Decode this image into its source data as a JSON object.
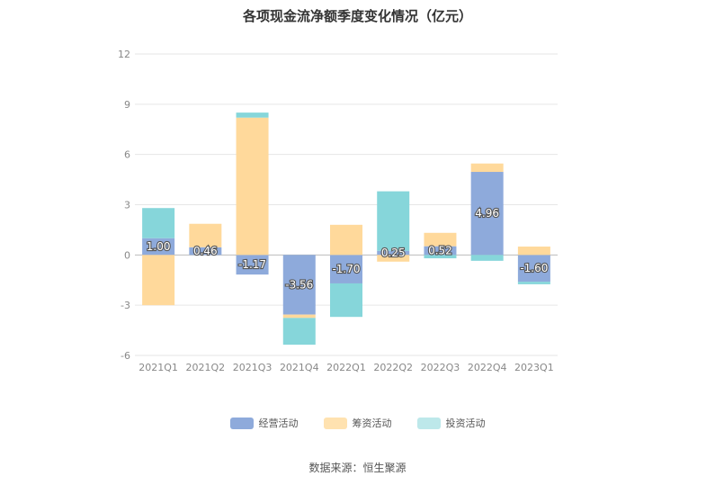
{
  "chart_data": {
    "type": "bar",
    "stacked": true,
    "title": "各项现金流净额季度变化情况（亿元）",
    "xlabel": "",
    "ylabel": "",
    "categories": [
      "2021Q1",
      "2021Q2",
      "2021Q3",
      "2021Q4",
      "2022Q1",
      "2022Q2",
      "2022Q3",
      "2022Q4",
      "2023Q1"
    ],
    "ylim": [
      -6,
      12
    ],
    "yticks": [
      -6,
      -3,
      0,
      3,
      6,
      9,
      12
    ],
    "grid": true,
    "legend_position": "bottom",
    "series": [
      {
        "name": "经营活动",
        "color": "#8eaadb",
        "values": [
          1.0,
          0.46,
          -1.17,
          -3.56,
          -1.7,
          0.25,
          0.52,
          4.96,
          -1.6
        ],
        "labels": [
          "1.00",
          "0.46",
          "-1.17",
          "-3.56",
          "-1.70",
          "0.25",
          "0.52",
          "4.96",
          "-1.60"
        ]
      },
      {
        "name": "筹资活动",
        "color": "#ffd99b",
        "values": [
          -3.0,
          1.4,
          8.2,
          -0.2,
          1.8,
          -0.4,
          0.8,
          0.5,
          0.5
        ]
      },
      {
        "name": "投资活动",
        "color": "#86d6da",
        "values": [
          1.8,
          0.0,
          0.3,
          -1.6,
          -2.0,
          3.55,
          -0.2,
          -0.35,
          -0.15
        ]
      }
    ]
  },
  "legend": {
    "items": [
      {
        "label": "经营活动",
        "color": "#8eaadb"
      },
      {
        "label": "筹资活动",
        "color": "#ffe2b0"
      },
      {
        "label": "投资活动",
        "color": "#bde8ea"
      }
    ]
  },
  "source_text": "数据来源：恒生聚源"
}
